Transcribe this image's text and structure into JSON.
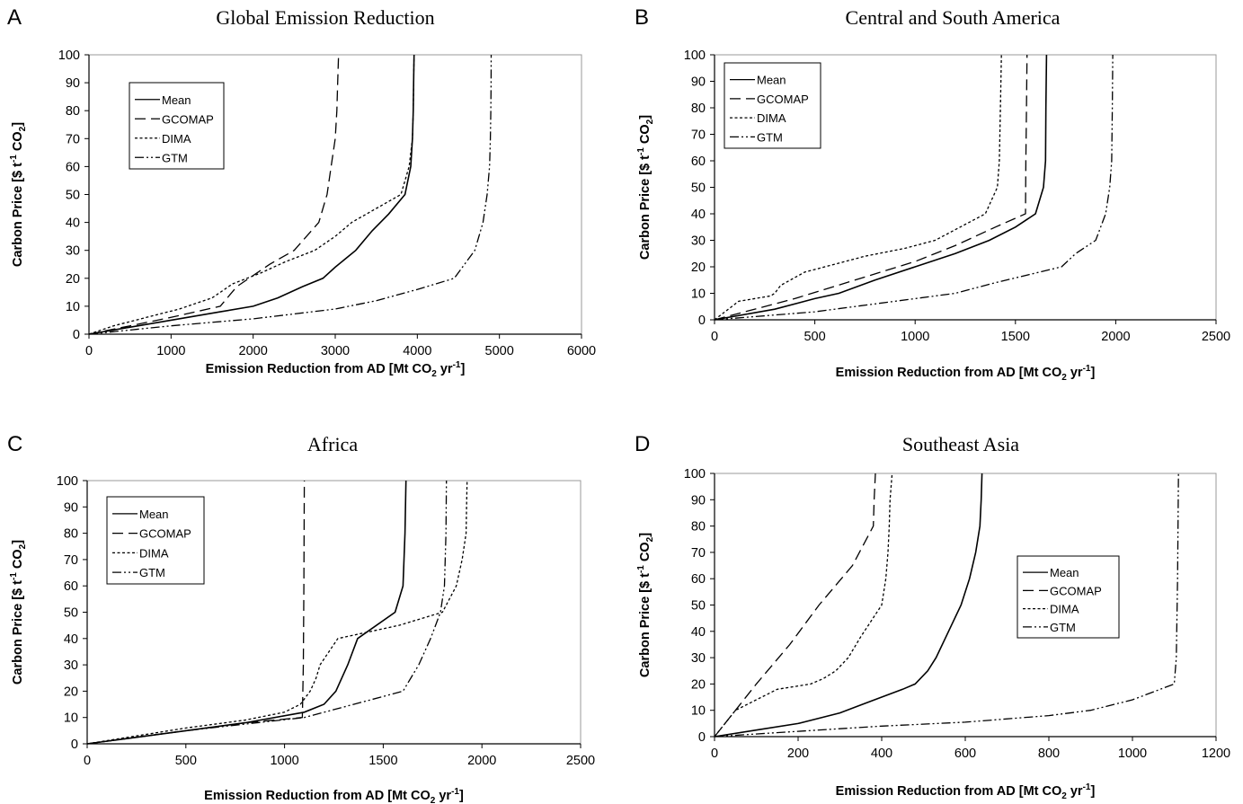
{
  "chart_data": [
    {
      "panel": "A",
      "type": "line",
      "title": "Global Emission Reduction",
      "xlabel": {
        "pre": "Emission Reduction from AD [Mt CO",
        "sub": "2",
        "mid": " yr",
        "sup": "-1",
        "post": "]"
      },
      "ylabel": {
        "pre": "Carbon Price [$ t",
        "sup": "-1",
        "mid": " CO",
        "sub": "2",
        "post": "]"
      },
      "xlim": [
        0,
        6000
      ],
      "ylim": [
        0,
        100
      ],
      "xticks": [
        0,
        1000,
        2000,
        3000,
        4000,
        5000,
        6000
      ],
      "yticks": [
        0,
        10,
        20,
        30,
        40,
        50,
        60,
        70,
        80,
        90,
        100
      ],
      "legend_position": "top-left",
      "series": [
        {
          "name": "Mean",
          "style": "solid",
          "points": [
            [
              0,
              0
            ],
            [
              600,
              3
            ],
            [
              1200,
              6
            ],
            [
              1600,
              8
            ],
            [
              2000,
              10
            ],
            [
              2300,
              13
            ],
            [
              2600,
              17
            ],
            [
              2850,
              20
            ],
            [
              3000,
              24
            ],
            [
              3250,
              30
            ],
            [
              3450,
              37
            ],
            [
              3650,
              43
            ],
            [
              3850,
              50
            ],
            [
              3920,
              60
            ],
            [
              3940,
              70
            ],
            [
              3950,
              80
            ],
            [
              3955,
              90
            ],
            [
              3960,
              100
            ]
          ]
        },
        {
          "name": "GCOMAP",
          "style": "dash",
          "points": [
            [
              0,
              0
            ],
            [
              500,
              3
            ],
            [
              1000,
              6
            ],
            [
              1600,
              10
            ],
            [
              1800,
              17
            ],
            [
              2200,
              25
            ],
            [
              2500,
              30
            ],
            [
              2800,
              40
            ],
            [
              2900,
              50
            ],
            [
              2950,
              60
            ],
            [
              3000,
              70
            ],
            [
              3020,
              80
            ],
            [
              3030,
              90
            ],
            [
              3040,
              100
            ]
          ]
        },
        {
          "name": "DIMA",
          "style": "dot",
          "points": [
            [
              0,
              0
            ],
            [
              300,
              3
            ],
            [
              700,
              6
            ],
            [
              1100,
              9
            ],
            [
              1500,
              13
            ],
            [
              1750,
              18
            ],
            [
              2100,
              22
            ],
            [
              2400,
              26
            ],
            [
              2750,
              30
            ],
            [
              3000,
              35
            ],
            [
              3200,
              40
            ],
            [
              3500,
              45
            ],
            [
              3800,
              50
            ],
            [
              3900,
              60
            ],
            [
              3940,
              70
            ],
            [
              3950,
              80
            ],
            [
              3955,
              90
            ],
            [
              3960,
              100
            ]
          ]
        },
        {
          "name": "GTM",
          "style": "dashdotdot",
          "points": [
            [
              0,
              0
            ],
            [
              1000,
              3
            ],
            [
              2000,
              5.5
            ],
            [
              3000,
              9
            ],
            [
              3500,
              12
            ],
            [
              4000,
              16
            ],
            [
              4450,
              20
            ],
            [
              4700,
              30
            ],
            [
              4800,
              40
            ],
            [
              4850,
              50
            ],
            [
              4880,
              60
            ],
            [
              4890,
              70
            ],
            [
              4895,
              80
            ],
            [
              4898,
              90
            ],
            [
              4900,
              100
            ]
          ]
        }
      ]
    },
    {
      "panel": "B",
      "type": "line",
      "title": "Central and South America",
      "xlabel": {
        "pre": "Emission Reduction from AD [Mt CO",
        "sub": "2",
        "mid": " yr",
        "sup": "-1",
        "post": "]"
      },
      "ylabel": {
        "pre": "Carbon Price [$ t",
        "sup": "-1",
        "mid": " CO",
        "sub": "2",
        "post": "]"
      },
      "xlim": [
        0,
        2500
      ],
      "ylim": [
        0,
        100
      ],
      "xticks": [
        0,
        500,
        1000,
        1500,
        2000,
        2500
      ],
      "yticks": [
        0,
        10,
        20,
        30,
        40,
        50,
        60,
        70,
        80,
        90,
        100
      ],
      "legend_position": "top-left",
      "series": [
        {
          "name": "Mean",
          "style": "solid",
          "points": [
            [
              0,
              0
            ],
            [
              300,
              4
            ],
            [
              500,
              8
            ],
            [
              620,
              10
            ],
            [
              800,
              15
            ],
            [
              1000,
              20
            ],
            [
              1200,
              25
            ],
            [
              1370,
              30
            ],
            [
              1500,
              35
            ],
            [
              1600,
              40
            ],
            [
              1640,
              50
            ],
            [
              1650,
              60
            ],
            [
              1652,
              80
            ],
            [
              1655,
              100
            ]
          ]
        },
        {
          "name": "GCOMAP",
          "style": "dash",
          "points": [
            [
              0,
              0
            ],
            [
              400,
              8
            ],
            [
              700,
              15
            ],
            [
              1000,
              22
            ],
            [
              1200,
              28
            ],
            [
              1400,
              35
            ],
            [
              1550,
              40
            ],
            [
              1552,
              60
            ],
            [
              1555,
              80
            ],
            [
              1558,
              100
            ]
          ]
        },
        {
          "name": "DIMA",
          "style": "dot",
          "points": [
            [
              0,
              0
            ],
            [
              120,
              7
            ],
            [
              280,
              9
            ],
            [
              300,
              10
            ],
            [
              330,
              13
            ],
            [
              450,
              18
            ],
            [
              600,
              21
            ],
            [
              750,
              24
            ],
            [
              950,
              27
            ],
            [
              1100,
              30
            ],
            [
              1200,
              34
            ],
            [
              1350,
              40
            ],
            [
              1410,
              50
            ],
            [
              1420,
              60
            ],
            [
              1425,
              80
            ],
            [
              1430,
              100
            ]
          ]
        },
        {
          "name": "GTM",
          "style": "dashdotdot",
          "points": [
            [
              0,
              0
            ],
            [
              500,
              3
            ],
            [
              1000,
              8
            ],
            [
              1200,
              10
            ],
            [
              1400,
              14
            ],
            [
              1730,
              20
            ],
            [
              1800,
              25
            ],
            [
              1900,
              30
            ],
            [
              1950,
              40
            ],
            [
              1970,
              50
            ],
            [
              1980,
              60
            ],
            [
              1983,
              80
            ],
            [
              1985,
              100
            ]
          ]
        }
      ]
    },
    {
      "panel": "C",
      "type": "line",
      "title": "Africa",
      "xlabel": {
        "pre": "Emission Reduction from AD [Mt CO",
        "sub": "2",
        "mid": " yr",
        "sup": "-1",
        "post": "]"
      },
      "ylabel": {
        "pre": "Carbon Price [$ t",
        "sup": "-1",
        "mid": " CO",
        "sub": "2",
        "post": "]"
      },
      "xlim": [
        0,
        2500
      ],
      "ylim": [
        0,
        100
      ],
      "xticks": [
        0,
        500,
        1000,
        1500,
        2000,
        2500
      ],
      "yticks": [
        0,
        10,
        20,
        30,
        40,
        50,
        60,
        70,
        80,
        90,
        100
      ],
      "legend_position": "top-left",
      "series": [
        {
          "name": "Mean",
          "style": "solid",
          "points": [
            [
              0,
              0
            ],
            [
              500,
              5
            ],
            [
              800,
              8
            ],
            [
              1100,
              12
            ],
            [
              1200,
              15
            ],
            [
              1260,
              20
            ],
            [
              1320,
              30
            ],
            [
              1370,
              40
            ],
            [
              1560,
              50
            ],
            [
              1600,
              60
            ],
            [
              1610,
              80
            ],
            [
              1615,
              100
            ]
          ]
        },
        {
          "name": "GCOMAP",
          "style": "dash",
          "points": [
            [
              0,
              0
            ],
            [
              500,
              5
            ],
            [
              800,
              8
            ],
            [
              1090,
              10
            ],
            [
              1095,
              30
            ],
            [
              1098,
              60
            ],
            [
              1100,
              100
            ]
          ]
        },
        {
          "name": "DIMA",
          "style": "dot",
          "points": [
            [
              0,
              0
            ],
            [
              500,
              6
            ],
            [
              800,
              9
            ],
            [
              1000,
              12
            ],
            [
              1080,
              15
            ],
            [
              1130,
              20
            ],
            [
              1160,
              25
            ],
            [
              1180,
              30
            ],
            [
              1270,
              40
            ],
            [
              1580,
              45
            ],
            [
              1800,
              50
            ],
            [
              1870,
              60
            ],
            [
              1900,
              70
            ],
            [
              1920,
              80
            ],
            [
              1922,
              90
            ],
            [
              1925,
              100
            ]
          ]
        },
        {
          "name": "GTM",
          "style": "dashdotdot",
          "points": [
            [
              0,
              0
            ],
            [
              500,
              5
            ],
            [
              1100,
              10
            ],
            [
              1300,
              14
            ],
            [
              1600,
              20
            ],
            [
              1680,
              30
            ],
            [
              1740,
              40
            ],
            [
              1790,
              50
            ],
            [
              1810,
              60
            ],
            [
              1818,
              80
            ],
            [
              1820,
              100
            ]
          ]
        }
      ]
    },
    {
      "panel": "D",
      "type": "line",
      "title": "Southeast Asia",
      "xlabel": {
        "pre": "Emission Reduction from AD [Mt CO",
        "sub": "2",
        "mid": " yr",
        "sup": "-1",
        "post": "]"
      },
      "ylabel": {
        "pre": "Carbon Price [$ t",
        "sup": "-1",
        "mid": " CO",
        "sub": "2",
        "post": "]"
      },
      "xlim": [
        0,
        1200
      ],
      "ylim": [
        0,
        100
      ],
      "xticks": [
        0,
        200,
        400,
        600,
        800,
        1000,
        1200
      ],
      "yticks": [
        0,
        10,
        20,
        30,
        40,
        50,
        60,
        70,
        80,
        90,
        100
      ],
      "legend_position": "center-right",
      "series": [
        {
          "name": "Mean",
          "style": "solid",
          "points": [
            [
              0,
              0
            ],
            [
              100,
              2.5
            ],
            [
              200,
              5
            ],
            [
              300,
              9
            ],
            [
              350,
              12
            ],
            [
              400,
              15
            ],
            [
              450,
              18
            ],
            [
              480,
              20
            ],
            [
              510,
              25
            ],
            [
              530,
              30
            ],
            [
              560,
              40
            ],
            [
              590,
              50
            ],
            [
              610,
              60
            ],
            [
              625,
              70
            ],
            [
              635,
              80
            ],
            [
              638,
              90
            ],
            [
              640,
              100
            ]
          ]
        },
        {
          "name": "GCOMAP",
          "style": "dash",
          "points": [
            [
              0,
              0
            ],
            [
              50,
              10
            ],
            [
              100,
              20
            ],
            [
              180,
              35
            ],
            [
              250,
              50
            ],
            [
              330,
              65
            ],
            [
              380,
              80
            ],
            [
              382,
              90
            ],
            [
              385,
              100
            ]
          ]
        },
        {
          "name": "DIMA",
          "style": "dot",
          "points": [
            [
              0,
              0
            ],
            [
              50,
              10
            ],
            [
              100,
              14
            ],
            [
              150,
              18
            ],
            [
              230,
              20
            ],
            [
              260,
              22
            ],
            [
              290,
              25
            ],
            [
              320,
              30
            ],
            [
              350,
              38
            ],
            [
              400,
              50
            ],
            [
              410,
              60
            ],
            [
              415,
              70
            ],
            [
              418,
              80
            ],
            [
              420,
              90
            ],
            [
              425,
              100
            ]
          ]
        },
        {
          "name": "GTM",
          "style": "dashdotdot",
          "points": [
            [
              0,
              0
            ],
            [
              200,
              2
            ],
            [
              400,
              4
            ],
            [
              600,
              5.5
            ],
            [
              800,
              8
            ],
            [
              900,
              10
            ],
            [
              1000,
              14
            ],
            [
              1100,
              20
            ],
            [
              1105,
              30
            ],
            [
              1108,
              60
            ],
            [
              1110,
              100
            ]
          ]
        }
      ]
    }
  ]
}
